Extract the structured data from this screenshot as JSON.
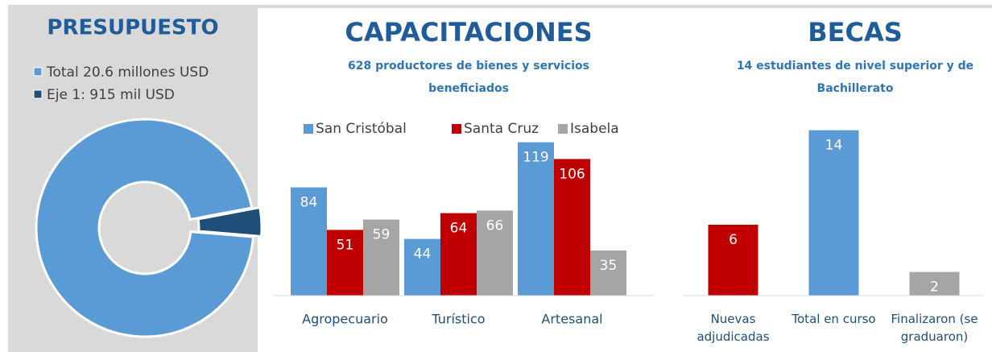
{
  "chart_data": [
    {
      "type": "pie",
      "title": "PRESUPUESTO",
      "categories": [
        "Total 20.6 millones USD",
        "Eje 1: 915 mil USD"
      ],
      "values": [
        20600000,
        915000
      ],
      "colors": [
        "#5b9bd5",
        "#1f4e79"
      ],
      "donut": true
    },
    {
      "type": "bar",
      "title": "CAPACITACIONES",
      "subtitle": "628 productores de bienes y servicios beneficiados",
      "categories": [
        "Agropecuario",
        "Turístico",
        "Artesanal"
      ],
      "series": [
        {
          "name": "San Cristóbal",
          "color": "#5b9bd5",
          "values": [
            84,
            44,
            119
          ]
        },
        {
          "name": "Santa Cruz",
          "color": "#c00000",
          "values": [
            51,
            64,
            106
          ]
        },
        {
          "name": "Isabela",
          "color": "#a5a5a5",
          "values": [
            59,
            66,
            35
          ]
        }
      ],
      "ylim": [
        0,
        130
      ]
    },
    {
      "type": "bar",
      "title": "BECAS",
      "subtitle": "14 estudiantes de nivel superior y de Bachillerato",
      "categories": [
        "Nuevas adjudicadas",
        "Total en curso",
        "Finalizaron (se graduaron)"
      ],
      "values": [
        6,
        14,
        2
      ],
      "colors": [
        "#c00000",
        "#5b9bd5",
        "#a5a5a5"
      ],
      "ylim": [
        0,
        15
      ]
    }
  ]
}
